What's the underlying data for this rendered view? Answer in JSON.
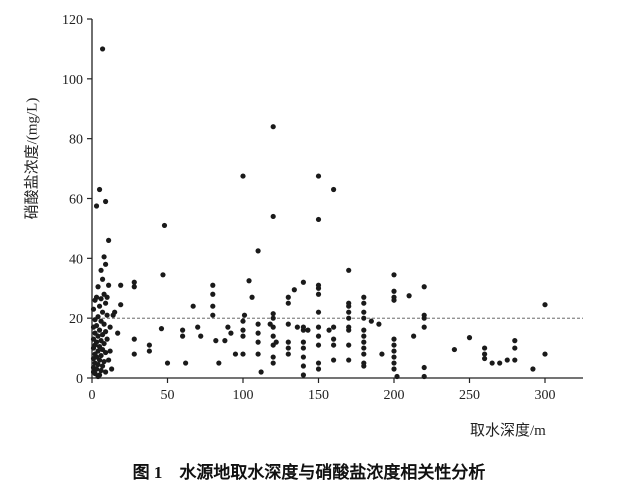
{
  "chart_data": {
    "type": "scatter",
    "title": "",
    "xlabel": "取水深度/m",
    "ylabel": "硝酸盐浓度/(mg/L)",
    "xlim": [
      0,
      320
    ],
    "ylim": [
      0,
      120
    ],
    "xticks": [
      0,
      50,
      100,
      150,
      200,
      250,
      300
    ],
    "yticks": [
      0,
      20,
      40,
      60,
      80,
      100,
      120
    ],
    "grid": false,
    "reference_line": {
      "y": 20,
      "style": "dashed"
    },
    "point_color": "#1a1a1a",
    "points": [
      [
        7,
        110
      ],
      [
        5,
        63
      ],
      [
        3,
        57.5
      ],
      [
        9,
        59
      ],
      [
        11,
        46
      ],
      [
        8,
        40.5
      ],
      [
        9,
        38
      ],
      [
        6,
        36
      ],
      [
        7,
        33
      ],
      [
        4,
        30.5
      ],
      [
        8,
        28
      ],
      [
        3,
        27
      ],
      [
        6,
        26.5
      ],
      [
        2,
        26
      ],
      [
        9,
        25
      ],
      [
        5,
        24
      ],
      [
        1,
        23
      ],
      [
        7,
        22
      ],
      [
        10,
        21
      ],
      [
        4,
        20.5
      ],
      [
        2,
        19.5
      ],
      [
        6,
        19
      ],
      [
        8,
        18
      ],
      [
        3,
        17.5
      ],
      [
        1,
        17
      ],
      [
        5,
        16
      ],
      [
        9,
        15.5
      ],
      [
        2,
        15
      ],
      [
        7,
        14.5
      ],
      [
        4,
        14
      ],
      [
        1,
        13
      ],
      [
        6,
        12.5
      ],
      [
        3,
        12
      ],
      [
        8,
        11.5
      ],
      [
        2,
        11
      ],
      [
        5,
        10.5
      ],
      [
        1,
        10
      ],
      [
        7,
        9.5
      ],
      [
        4,
        9
      ],
      [
        9,
        8.5
      ],
      [
        2,
        8
      ],
      [
        6,
        7.5
      ],
      [
        3,
        7
      ],
      [
        1,
        6.5
      ],
      [
        5,
        6
      ],
      [
        8,
        5.5
      ],
      [
        2,
        5
      ],
      [
        4,
        4.5
      ],
      [
        7,
        4
      ],
      [
        1,
        3.5
      ],
      [
        3,
        3
      ],
      [
        6,
        2.5
      ],
      [
        9,
        2
      ],
      [
        2,
        1.5
      ],
      [
        5,
        1
      ],
      [
        4,
        0.5
      ],
      [
        1,
        2
      ],
      [
        10,
        13
      ],
      [
        12,
        9
      ],
      [
        11,
        6
      ],
      [
        13,
        3
      ],
      [
        12,
        17
      ],
      [
        14,
        21
      ],
      [
        10,
        27
      ],
      [
        15,
        22
      ],
      [
        17,
        15
      ],
      [
        11,
        31
      ],
      [
        19,
        31
      ],
      [
        19,
        24.5
      ],
      [
        28,
        32
      ],
      [
        28,
        30.5
      ],
      [
        28,
        13
      ],
      [
        28,
        8
      ],
      [
        38,
        11
      ],
      [
        38,
        9
      ],
      [
        47,
        34.5
      ],
      [
        46,
        16.5
      ],
      [
        48,
        51
      ],
      [
        50,
        5
      ],
      [
        60,
        16
      ],
      [
        60,
        14
      ],
      [
        62,
        5
      ],
      [
        67,
        24
      ],
      [
        70,
        17
      ],
      [
        72,
        14
      ],
      [
        80,
        31
      ],
      [
        80,
        28
      ],
      [
        80,
        24
      ],
      [
        80,
        21
      ],
      [
        82,
        12.5
      ],
      [
        84,
        5
      ],
      [
        88,
        12.5
      ],
      [
        90,
        17
      ],
      [
        92,
        15
      ],
      [
        95,
        8
      ],
      [
        100,
        67.5
      ],
      [
        100,
        19
      ],
      [
        100,
        16
      ],
      [
        100,
        14
      ],
      [
        100,
        8
      ],
      [
        101,
        21
      ],
      [
        104,
        32.5
      ],
      [
        106,
        27
      ],
      [
        110,
        42.5
      ],
      [
        110,
        18
      ],
      [
        110,
        15
      ],
      [
        110,
        12
      ],
      [
        110,
        8
      ],
      [
        112,
        2
      ],
      [
        118,
        18
      ],
      [
        120,
        84
      ],
      [
        120,
        54
      ],
      [
        120,
        21.5
      ],
      [
        120,
        20
      ],
      [
        120,
        17
      ],
      [
        120,
        14
      ],
      [
        120,
        11
      ],
      [
        120,
        7
      ],
      [
        120,
        5
      ],
      [
        122,
        12
      ],
      [
        130,
        27
      ],
      [
        130,
        25
      ],
      [
        130,
        18
      ],
      [
        130,
        12
      ],
      [
        130,
        10
      ],
      [
        130,
        8
      ],
      [
        134,
        29.5
      ],
      [
        136,
        17
      ],
      [
        140,
        32
      ],
      [
        140,
        17
      ],
      [
        140,
        16
      ],
      [
        140,
        12
      ],
      [
        140,
        10
      ],
      [
        140,
        7
      ],
      [
        140,
        4
      ],
      [
        140,
        1
      ],
      [
        143,
        16
      ],
      [
        150,
        67.5
      ],
      [
        150,
        53
      ],
      [
        150,
        31
      ],
      [
        150,
        30
      ],
      [
        150,
        28
      ],
      [
        150,
        22
      ],
      [
        150,
        17
      ],
      [
        150,
        14
      ],
      [
        150,
        11
      ],
      [
        150,
        5
      ],
      [
        150,
        3
      ],
      [
        157,
        16
      ],
      [
        160,
        63
      ],
      [
        160,
        17
      ],
      [
        160,
        13
      ],
      [
        160,
        11
      ],
      [
        160,
        6
      ],
      [
        170,
        36
      ],
      [
        170,
        25
      ],
      [
        170,
        24
      ],
      [
        170,
        22
      ],
      [
        170,
        20
      ],
      [
        170,
        17
      ],
      [
        170,
        16
      ],
      [
        170,
        11
      ],
      [
        170,
        6
      ],
      [
        180,
        27
      ],
      [
        180,
        25
      ],
      [
        180,
        22
      ],
      [
        180,
        20
      ],
      [
        180,
        16
      ],
      [
        180,
        14
      ],
      [
        180,
        12
      ],
      [
        180,
        10
      ],
      [
        180,
        8
      ],
      [
        180,
        5
      ],
      [
        180,
        4
      ],
      [
        185,
        19
      ],
      [
        190,
        18
      ],
      [
        192,
        8
      ],
      [
        200,
        34.5
      ],
      [
        200,
        29
      ],
      [
        200,
        27
      ],
      [
        200,
        26
      ],
      [
        200,
        13
      ],
      [
        200,
        11
      ],
      [
        200,
        9
      ],
      [
        200,
        7
      ],
      [
        200,
        5
      ],
      [
        200,
        3
      ],
      [
        202,
        0.5
      ],
      [
        210,
        27.5
      ],
      [
        213,
        14
      ],
      [
        220,
        30.5
      ],
      [
        220,
        21
      ],
      [
        220,
        20
      ],
      [
        220,
        17
      ],
      [
        220,
        3.5
      ],
      [
        220,
        0.5
      ],
      [
        240,
        9.5
      ],
      [
        250,
        13.5
      ],
      [
        260,
        10
      ],
      [
        260,
        8
      ],
      [
        260,
        6.5
      ],
      [
        265,
        5
      ],
      [
        270,
        5
      ],
      [
        275,
        6
      ],
      [
        280,
        12.5
      ],
      [
        280,
        10
      ],
      [
        280,
        6
      ],
      [
        292,
        3
      ],
      [
        300,
        24.5
      ],
      [
        300,
        8
      ]
    ]
  },
  "caption": "图 1　水源地取水深度与硝酸盐浓度相关性分析"
}
